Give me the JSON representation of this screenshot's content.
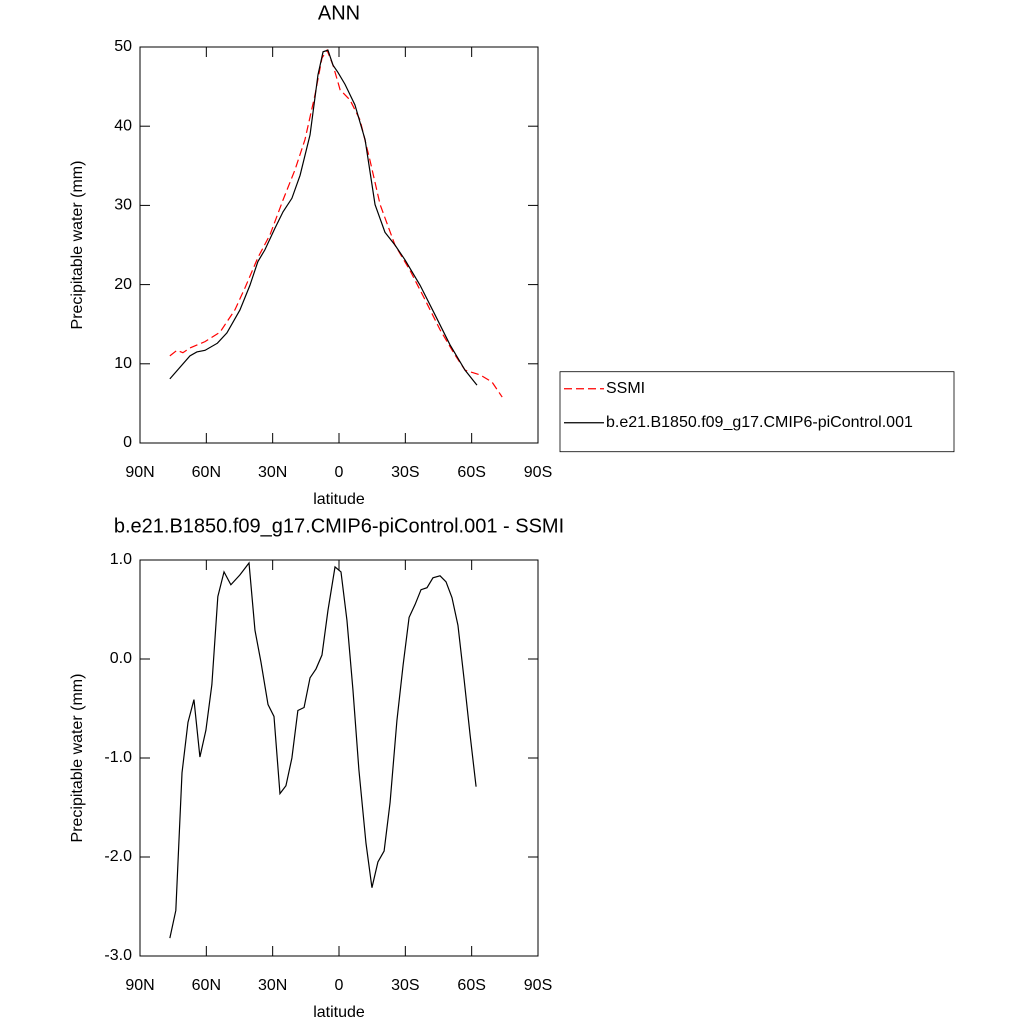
{
  "chart_data": [
    {
      "type": "line",
      "title": "ANN",
      "xlabel": "latitude",
      "ylabel": "Precipitable water (mm)",
      "xlim": [
        90,
        -90
      ],
      "xticks": [
        {
          "value": 90,
          "label": "90N"
        },
        {
          "value": 60,
          "label": "60N"
        },
        {
          "value": 30,
          "label": "30N"
        },
        0,
        {
          "value": -30,
          "label": "30S"
        },
        {
          "value": -60,
          "label": "60S"
        },
        {
          "value": -90,
          "label": "90S"
        }
      ],
      "ylim": [
        0,
        50
      ],
      "yticks": [
        0,
        10,
        20,
        30,
        40,
        50
      ],
      "legend": "right",
      "series": [
        {
          "name": "SSMI",
          "color": "#ff0000",
          "line_style": "dashed",
          "x": [
            76.5,
            73.3,
            70.6,
            67.4,
            60.6,
            53.8,
            47.1,
            42.5,
            36.7,
            31.2,
            25.3,
            19.9,
            15.4,
            10.9,
            7.7,
            5.4,
            2.7,
            -0.5,
            -5,
            -9.5,
            -14,
            -18.6,
            -25.3,
            -32.1,
            -38.9,
            -45.7,
            -52.5,
            -57,
            -63.8,
            -69.2,
            -73.8
          ],
          "values": [
            11.0,
            11.7,
            11.4,
            12.0,
            12.8,
            14.0,
            16.8,
            19.6,
            23.4,
            26.3,
            30.7,
            34.5,
            38.3,
            43.9,
            48.6,
            49.6,
            47.7,
            44.6,
            43.3,
            40.8,
            35.7,
            30.1,
            25.0,
            21.8,
            18.1,
            14.3,
            11.1,
            9.2,
            8.6,
            7.7,
            5.8
          ]
        },
        {
          "name": "b.e21.B1850.f09_g17.CMIP6-piControl.001",
          "color": "#000000",
          "line_style": "solid",
          "x": [
            76.5,
            67.4,
            64.3,
            60.6,
            55,
            50.7,
            44.8,
            40.3,
            36.7,
            33.5,
            29,
            25.3,
            21.3,
            17.6,
            13.1,
            9.5,
            7.2,
            5,
            2.7,
            0.5,
            -2.7,
            -7.2,
            -11.8,
            -16.3,
            -20.8,
            -25.3,
            -29.9,
            -36.7,
            -43.4,
            -50.2,
            -57,
            -62.4
          ],
          "values": [
            8.1,
            11.0,
            11.5,
            11.7,
            12.6,
            13.9,
            16.8,
            19.9,
            22.9,
            24.4,
            27.1,
            29.2,
            30.9,
            33.8,
            38.9,
            46.5,
            49.4,
            49.6,
            47.7,
            46.8,
            45.3,
            42.7,
            38.3,
            30.1,
            26.6,
            25.0,
            23.1,
            19.9,
            16.2,
            12.4,
            9.2,
            7.3
          ]
        }
      ]
    },
    {
      "type": "line",
      "title": "b.e21.B1850.f09_g17.CMIP6-piControl.001 - SSMI",
      "xlabel": "latitude",
      "ylabel": "Precipitable water (mm)",
      "xlim": [
        90,
        -90
      ],
      "xticks": [
        {
          "value": 90,
          "label": "90N"
        },
        {
          "value": 60,
          "label": "60N"
        },
        {
          "value": 30,
          "label": "30N"
        },
        0,
        {
          "value": -30,
          "label": "30S"
        },
        {
          "value": -60,
          "label": "60S"
        },
        {
          "value": -90,
          "label": "90S"
        }
      ],
      "ylim": [
        -3,
        1
      ],
      "yticks": [
        {
          "value": -3,
          "label": "-3.0"
        },
        {
          "value": -2,
          "label": "-2.0"
        },
        {
          "value": -1,
          "label": "-1.0"
        },
        {
          "value": 0,
          "label": "0.0"
        },
        {
          "value": 1,
          "label": "1.0"
        }
      ],
      "series": [
        {
          "color": "#000000",
          "line_style": "solid",
          "x": [
            76.5,
            73.8,
            71,
            68.3,
            65.6,
            62.9,
            60.2,
            57.5,
            54.8,
            52,
            48.9,
            44.8,
            40.7,
            38,
            35.3,
            32.1,
            29.4,
            26.7,
            24,
            21.3,
            18.6,
            15.8,
            13.1,
            10.4,
            7.7,
            5,
            1.8,
            -0.9,
            -3.6,
            -6.3,
            -9,
            -12.2,
            -14.9,
            -17.6,
            -20.4,
            -23.1,
            -26.2,
            -29,
            -31.7,
            -34.4,
            -37.1,
            -39.8,
            -42.5,
            -45.7,
            -48.4,
            -51.1,
            -53.8,
            -56.6,
            -59.3,
            -62
          ],
          "values": [
            -2.82,
            -2.54,
            -1.15,
            -0.64,
            -0.41,
            -0.99,
            -0.72,
            -0.26,
            0.63,
            0.88,
            0.75,
            0.85,
            0.97,
            0.29,
            -0.03,
            -0.46,
            -0.58,
            -1.36,
            -1.28,
            -1.0,
            -0.52,
            -0.49,
            -0.19,
            -0.1,
            0.04,
            0.49,
            0.93,
            0.88,
            0.39,
            -0.31,
            -1.12,
            -1.86,
            -2.31,
            -2.05,
            -1.94,
            -1.45,
            -0.62,
            -0.06,
            0.42,
            0.55,
            0.7,
            0.72,
            0.82,
            0.84,
            0.78,
            0.62,
            0.34,
            -0.21,
            -0.77,
            -1.29
          ]
        }
      ]
    }
  ]
}
